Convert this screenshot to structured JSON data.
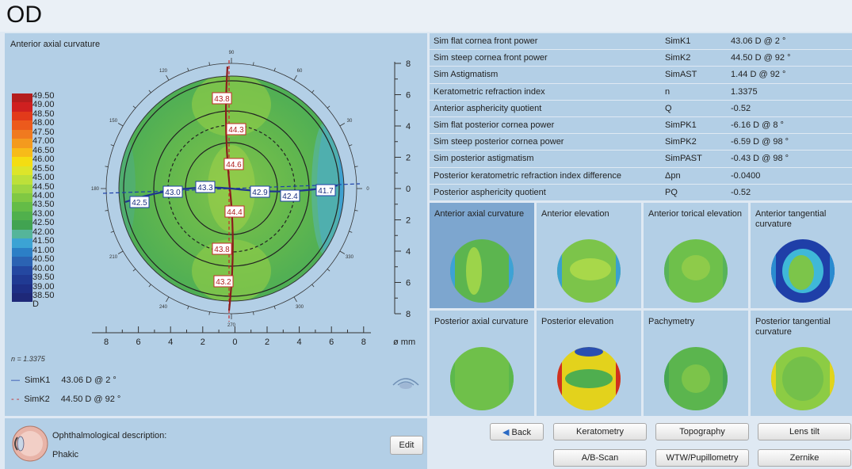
{
  "header": {
    "title": "OD"
  },
  "map": {
    "title": "Anterior axial curvature",
    "scale_values": [
      "49.50",
      "49.00",
      "48.50",
      "48.00",
      "47.50",
      "47.00",
      "46.50",
      "46.00",
      "45.50",
      "45.00",
      "44.50",
      "44.00",
      "43.50",
      "43.00",
      "42.50",
      "42.00",
      "41.50",
      "41.00",
      "40.50",
      "40.00",
      "39.50",
      "39.00",
      "38.50"
    ],
    "scale_unit": "D",
    "scale_colors": [
      "#b41e1e",
      "#cf2020",
      "#e23a1a",
      "#ec5a1c",
      "#f07a1f",
      "#f49a1e",
      "#f7bb19",
      "#f4dd12",
      "#dde52a",
      "#bde03a",
      "#9dd542",
      "#80c843",
      "#64bc47",
      "#50b04c",
      "#41a351",
      "#55b59a",
      "#3ca3d4",
      "#2c7fc6",
      "#2b63b3",
      "#2448a1",
      "#203a93",
      "#1e2f86",
      "#1e2878"
    ],
    "values": {
      "v1": "43.8",
      "v2": "44.3",
      "v3": "44.6",
      "v4": "44.4",
      "v5": "43.8",
      "v6": "43.2",
      "h1": "42.5",
      "h2": "43.0",
      "h3": "43.3",
      "h4": "42.9",
      "h5": "42.4",
      "h6": "41.7"
    },
    "y_axis_ticks": [
      "8",
      "6",
      "4",
      "2",
      "0",
      "2",
      "4",
      "6",
      "8"
    ],
    "x_axis_ticks": [
      "8",
      "6",
      "4",
      "2",
      "0",
      "2",
      "4",
      "6",
      "8"
    ],
    "axis_unit": "ø mm",
    "angle_labels": [
      "90",
      "120",
      "150",
      "180",
      "210",
      "240",
      "270",
      "300",
      "330",
      "0",
      "30",
      "60"
    ],
    "n_label": "n = 1.3375",
    "legend": [
      {
        "symbol": "—",
        "name": "SimK1",
        "value": "43.06 D @ 2 °",
        "color": "#1d3fa8"
      },
      {
        "symbol": "- -",
        "name": "SimK2",
        "value": "44.50 D @ 92 °",
        "color": "#c42a2a"
      }
    ]
  },
  "description": {
    "label": "Ophthalmological description:",
    "value": "Phakic",
    "edit_label": "Edit"
  },
  "parameters": [
    {
      "name": "Sim flat cornea front power",
      "symbol": "SimK1",
      "value": "43.06 D @ 2 °"
    },
    {
      "name": "Sim steep cornea front power",
      "symbol": "SimK2",
      "value": "44.50 D @ 92 °"
    },
    {
      "name": "Sim Astigmatism",
      "symbol": "SimAST",
      "value": "1.44 D @ 92 °"
    },
    {
      "name": "Keratometric refraction index",
      "symbol": "n",
      "value": "1.3375"
    },
    {
      "name": "Anterior asphericity quotient",
      "symbol": "Q",
      "value": "-0.52"
    },
    {
      "name": "Sim flat posterior cornea power",
      "symbol": "SimPK1",
      "value": "-6.16 D @ 8 °"
    },
    {
      "name": "Sim steep posterior cornea power",
      "symbol": "SimPK2",
      "value": "-6.59 D @ 98 °"
    },
    {
      "name": "Sim posterior astigmatism",
      "symbol": "SimPAST",
      "value": "-0.43 D @ 98 °"
    },
    {
      "name": "Posterior keratometric refraction index difference",
      "symbol": "Δpn",
      "value": "-0.0400"
    },
    {
      "name": "Posterior asphericity quotient",
      "symbol": "PQ",
      "value": "-0.52"
    }
  ],
  "thumbnails": [
    {
      "label": "Anterior axial curvature",
      "selected": true
    },
    {
      "label": "Anterior elevation",
      "selected": false
    },
    {
      "label": "Anterior torical elevation",
      "selected": false
    },
    {
      "label": "Anterior tangential curvature",
      "selected": false
    },
    {
      "label": "Posterior axial curvature",
      "selected": false
    },
    {
      "label": "Posterior elevation",
      "selected": false
    },
    {
      "label": "Pachymetry",
      "selected": false
    },
    {
      "label": "Posterior tangential curvature",
      "selected": false
    }
  ],
  "buttons": {
    "back": "Back",
    "keratometry": "Keratometry",
    "topography": "Topography",
    "lens_tilt": "Lens tilt",
    "ab_scan": "A/B-Scan",
    "wtw": "WTW/Pupillometry",
    "zernike": "Zernike"
  }
}
